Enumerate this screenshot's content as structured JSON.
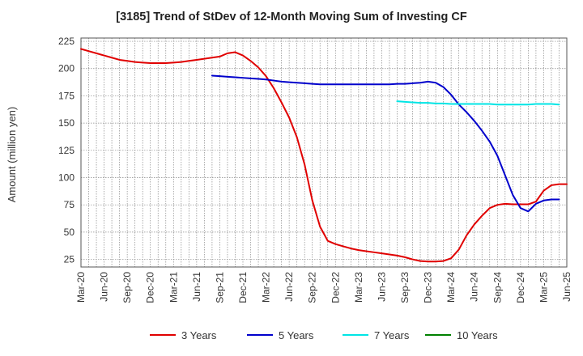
{
  "chart_data": {
    "type": "line",
    "title": "[3185]  Trend of StDev of 12-Month Moving Sum of Investing CF",
    "xlabel": "",
    "ylabel": "Amount (million yen)",
    "ylim": [
      18,
      228
    ],
    "yticks": [
      25,
      50,
      75,
      100,
      125,
      150,
      175,
      200,
      225
    ],
    "x_ticks": [
      "Mar-20",
      "Jun-20",
      "Sep-20",
      "Dec-20",
      "Mar-21",
      "Jun-21",
      "Sep-21",
      "Dec-21",
      "Mar-22",
      "Jun-22",
      "Sep-22",
      "Dec-22",
      "Mar-23",
      "Jun-23",
      "Sep-23",
      "Dec-23",
      "Mar-24",
      "Jun-24",
      "Sep-24",
      "Dec-24",
      "Mar-25",
      "Jun-25"
    ],
    "x_months": [
      "Mar-20",
      "Apr-20",
      "May-20",
      "Jun-20",
      "Jul-20",
      "Aug-20",
      "Sep-20",
      "Oct-20",
      "Nov-20",
      "Dec-20",
      "Jan-21",
      "Feb-21",
      "Mar-21",
      "Apr-21",
      "May-21",
      "Jun-21",
      "Jul-21",
      "Aug-21",
      "Sep-21",
      "Oct-21",
      "Nov-21",
      "Dec-21",
      "Jan-22",
      "Feb-22",
      "Mar-22",
      "Apr-22",
      "May-22",
      "Jun-22",
      "Jul-22",
      "Aug-22",
      "Sep-22",
      "Oct-22",
      "Nov-22",
      "Dec-22",
      "Jan-23",
      "Feb-23",
      "Mar-23",
      "Apr-23",
      "May-23",
      "Jun-23",
      "Jul-23",
      "Aug-23",
      "Sep-23",
      "Oct-23",
      "Nov-23",
      "Dec-23",
      "Jan-24",
      "Feb-24",
      "Mar-24",
      "Apr-24",
      "May-24",
      "Jun-24",
      "Jul-24",
      "Aug-24",
      "Sep-24",
      "Oct-24",
      "Nov-24",
      "Dec-24",
      "Jan-25",
      "Feb-25",
      "Mar-25",
      "Apr-25",
      "May-25",
      "Jun-25"
    ],
    "grid": true,
    "legend_position": "bottom",
    "series": [
      {
        "name": "3 Years",
        "color": "#e00000",
        "start": "Mar-20",
        "values": [
          218,
          216,
          214,
          212,
          210,
          208,
          207,
          206,
          205.5,
          205,
          205,
          205,
          205.5,
          206,
          207,
          208,
          209,
          210,
          211,
          214,
          215,
          212,
          207,
          201,
          193,
          182,
          169,
          155,
          137,
          112,
          79,
          55,
          42,
          39,
          37,
          35,
          33.5,
          32.5,
          31.5,
          30.5,
          29.5,
          28.5,
          27,
          25,
          23.5,
          23,
          23,
          23.5,
          26,
          34,
          47,
          57,
          65,
          72,
          75,
          76,
          75.5,
          75.5,
          75.5,
          78,
          88,
          93,
          94,
          94
        ]
      },
      {
        "name": "5 Years",
        "color": "#0000cc",
        "start": "Aug-21",
        "values": [
          193.5,
          193,
          192.5,
          192,
          191.5,
          191,
          190.5,
          190,
          189,
          188,
          187.5,
          187,
          186.5,
          186,
          185.5,
          185.5,
          185.5,
          185.5,
          185.5,
          185.5,
          185.5,
          185.5,
          185.5,
          185.5,
          186,
          186,
          186.5,
          187,
          188,
          187,
          183,
          176,
          167,
          160,
          152,
          143,
          133,
          120,
          102,
          84,
          72,
          69,
          76,
          79,
          80,
          80
        ]
      },
      {
        "name": "7 Years",
        "color": "#00e5e5",
        "start": "Aug-23",
        "values": [
          170,
          169.5,
          169,
          168.5,
          168.5,
          168,
          168,
          167.5,
          167.5,
          167.5,
          167.5,
          167.5,
          167.5,
          167,
          167,
          167,
          167,
          167,
          167.5,
          167.5,
          167.5,
          167
        ]
      },
      {
        "name": "10 Years",
        "color": "#008000",
        "start": "Aug-23",
        "values": []
      }
    ]
  }
}
